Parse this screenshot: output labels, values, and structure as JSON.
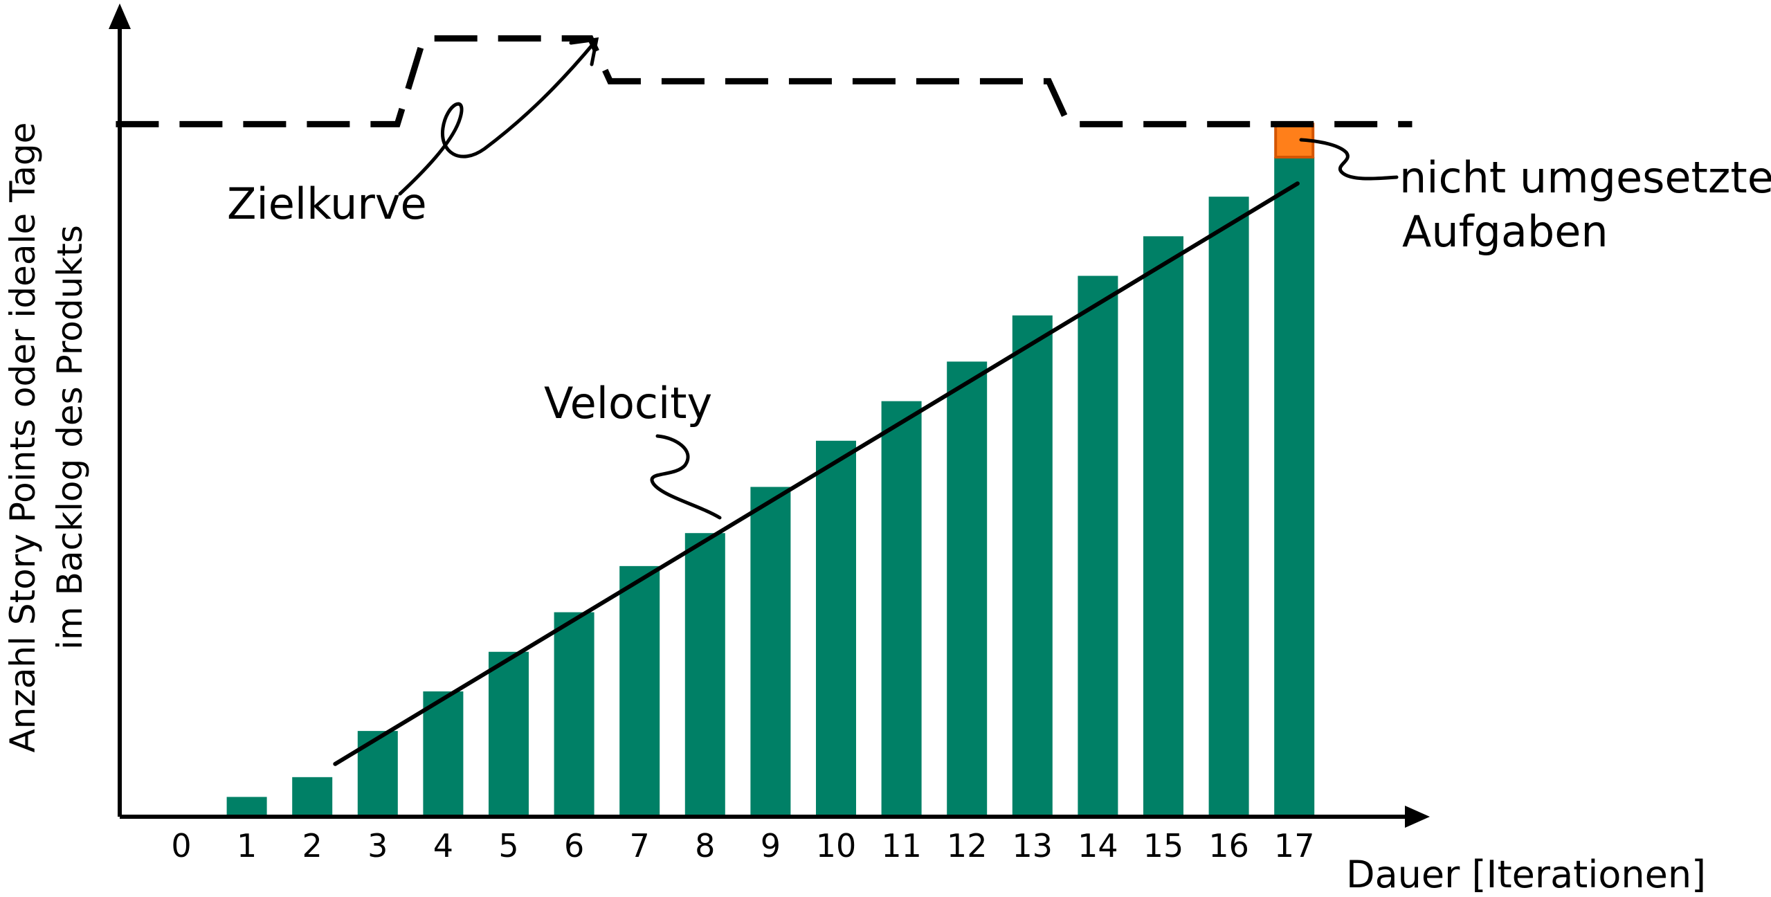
{
  "chart_data": {
    "type": "bar",
    "categories": [
      "0",
      "1",
      "2",
      "3",
      "4",
      "5",
      "6",
      "7",
      "8",
      "9",
      "10",
      "11",
      "12",
      "13",
      "14",
      "15",
      "16",
      "17"
    ],
    "values": [
      0,
      3,
      6,
      13,
      19,
      25,
      31,
      38,
      43,
      50,
      57,
      63,
      69,
      76,
      82,
      88,
      94,
      100
    ],
    "unfinished_value": 5,
    "ylim": [
      0,
      118
    ],
    "xlabel": "Dauer [Iterationen]",
    "ylabel_lines": [
      "Anzahl Story Points oder ideale Tage",
      "im Backlog des Produkts"
    ],
    "target_curve": {
      "label": "Zielkurve",
      "points": [
        [
          -1.0,
          105
        ],
        [
          3.3,
          105
        ],
        [
          3.7,
          118
        ],
        [
          6.25,
          118
        ],
        [
          6.55,
          111.5
        ],
        [
          13.25,
          111.5
        ],
        [
          13.55,
          105
        ],
        [
          18.8,
          105
        ]
      ]
    },
    "velocity_line": {
      "label": "Velocity",
      "from": [
        2.35,
        8
      ],
      "to": [
        17.05,
        96
      ]
    },
    "unfinished_label_lines": [
      "nicht umgesetzte",
      "Aufgaben"
    ],
    "colors": {
      "bar": "#008066",
      "unfinished": "#ff7f1a",
      "unfinished_border": "#d45500",
      "ink": "#000000"
    }
  }
}
